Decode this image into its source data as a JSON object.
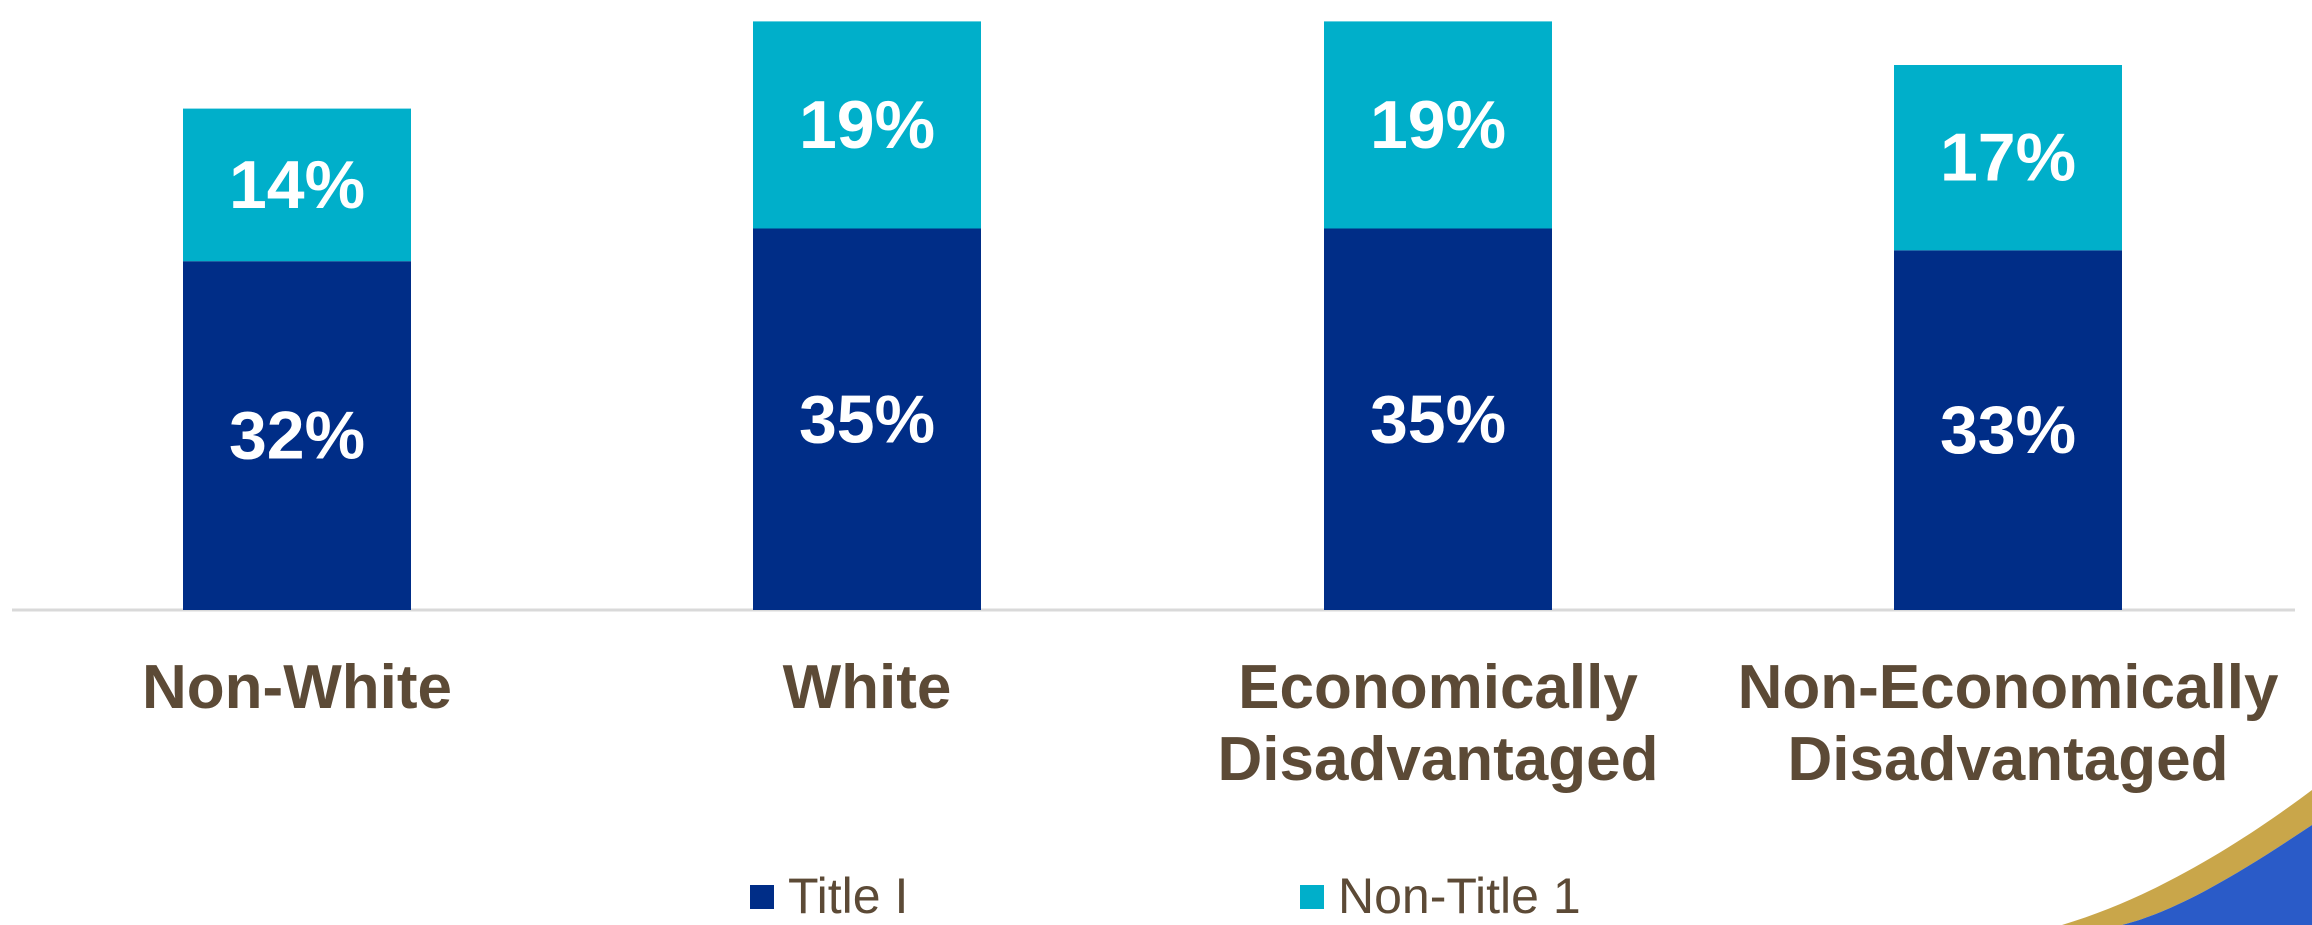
{
  "chart_data": {
    "type": "bar",
    "stacked": true,
    "categories": [
      [
        "Non-White"
      ],
      [
        "White"
      ],
      [
        "Economically",
        "Disadvantaged"
      ],
      [
        "Non-Economically",
        "Disadvantaged"
      ]
    ],
    "series": [
      {
        "name": "Title I",
        "values": [
          32,
          35,
          35,
          33
        ],
        "labels": [
          "32%",
          "35%",
          "35%",
          "33%"
        ],
        "color": "#002d87"
      },
      {
        "name": "Non-Title 1",
        "values": [
          14,
          19,
          19,
          17
        ],
        "labels": [
          "14%",
          "19%",
          "19%",
          "17%"
        ],
        "color": "#00afca"
      }
    ],
    "ylim": [
      0,
      55
    ],
    "grid": false,
    "legend_position": "bottom"
  },
  "legend": {
    "title_i": "Title I",
    "non_title_1": "Non-Title 1"
  },
  "colors": {
    "title_i": "#002d87",
    "non_title_1": "#00afca",
    "label_text": "#5c4a36",
    "decor_gold": "#c9a64a",
    "decor_blue": "#2a5bc8"
  }
}
